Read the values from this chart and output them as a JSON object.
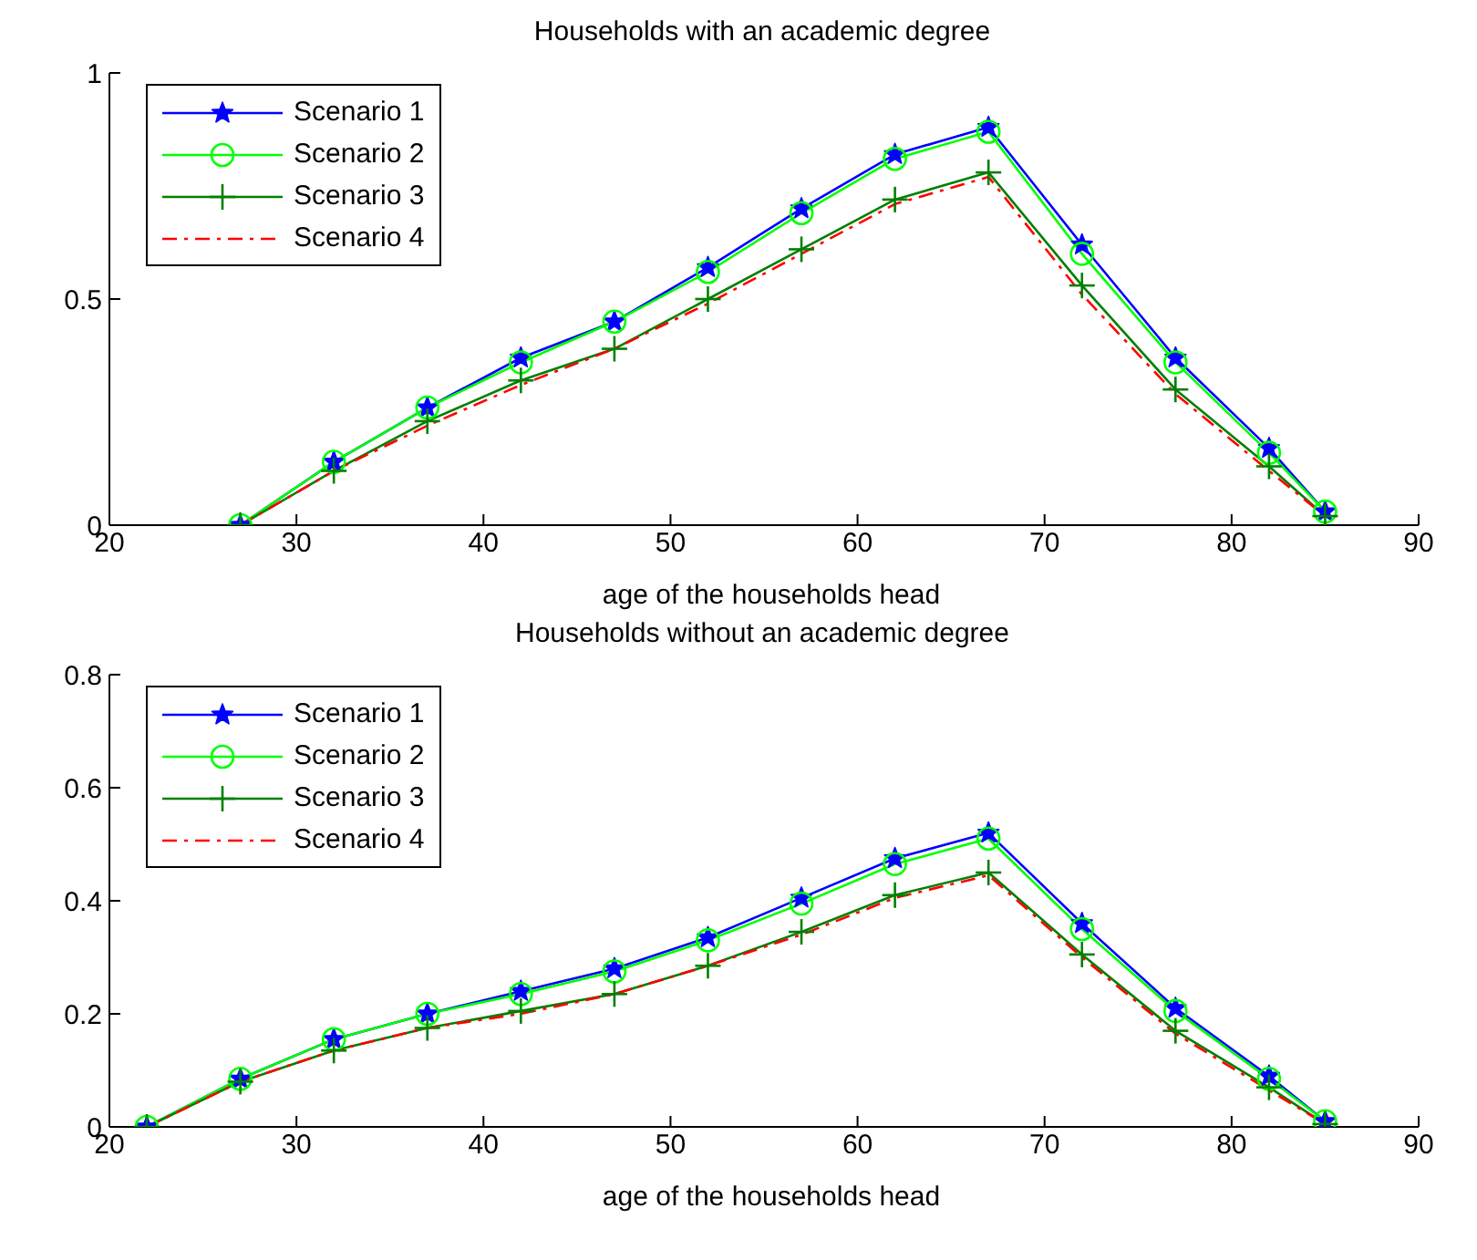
{
  "chart_data": [
    {
      "type": "line",
      "title": "Households with an academic degree",
      "xlabel": "age of the households head",
      "x": [
        27,
        32,
        37,
        42,
        47,
        52,
        57,
        62,
        67,
        72,
        77,
        82,
        85
      ],
      "xlim": [
        20,
        90
      ],
      "xticks": [
        20,
        30,
        40,
        50,
        60,
        70,
        80,
        90
      ],
      "ylim": [
        0,
        1
      ],
      "yticks": [
        0,
        0.5,
        1
      ],
      "legend": "top left",
      "series": [
        {
          "name": "Scenario 1",
          "color": "#0000ff",
          "marker": "star",
          "line_style": "solid",
          "values": [
            0,
            0.14,
            0.26,
            0.37,
            0.45,
            0.57,
            0.7,
            0.82,
            0.88,
            0.62,
            0.37,
            0.17,
            0.03
          ]
        },
        {
          "name": "Scenario 2",
          "color": "#00ff00",
          "marker": "circle",
          "line_style": "solid",
          "values": [
            0,
            0.14,
            0.26,
            0.36,
            0.45,
            0.56,
            0.69,
            0.81,
            0.87,
            0.6,
            0.36,
            0.16,
            0.03
          ]
        },
        {
          "name": "Scenario 3",
          "color": "#008000",
          "marker": "cross",
          "line_style": "solid",
          "values": [
            0,
            0.12,
            0.23,
            0.32,
            0.39,
            0.5,
            0.61,
            0.72,
            0.78,
            0.53,
            0.3,
            0.13,
            0.02
          ]
        },
        {
          "name": "Scenario 4",
          "color": "#ff0000",
          "marker": "none",
          "line_style": "dashed",
          "values": [
            0,
            0.12,
            0.22,
            0.31,
            0.39,
            0.49,
            0.6,
            0.71,
            0.77,
            0.51,
            0.29,
            0.12,
            0.02
          ]
        }
      ]
    },
    {
      "type": "line",
      "title": "Households without an academic degree",
      "xlabel": "age of the households head",
      "x": [
        22,
        27,
        32,
        37,
        42,
        47,
        52,
        57,
        62,
        67,
        72,
        77,
        82,
        85
      ],
      "xlim": [
        20,
        90
      ],
      "xticks": [
        20,
        30,
        40,
        50,
        60,
        70,
        80,
        90
      ],
      "ylim": [
        0,
        0.8
      ],
      "yticks": [
        0,
        0.2,
        0.4,
        0.6,
        0.8
      ],
      "legend": "top left",
      "series": [
        {
          "name": "Scenario 1",
          "color": "#0000ff",
          "marker": "star",
          "line_style": "solid",
          "values": [
            0,
            0.085,
            0.155,
            0.2,
            0.24,
            0.28,
            0.335,
            0.405,
            0.475,
            0.52,
            0.36,
            0.21,
            0.09,
            0.01
          ]
        },
        {
          "name": "Scenario 2",
          "color": "#00ff00",
          "marker": "circle",
          "line_style": "solid",
          "values": [
            0,
            0.085,
            0.155,
            0.2,
            0.235,
            0.275,
            0.33,
            0.395,
            0.465,
            0.51,
            0.35,
            0.205,
            0.085,
            0.01
          ]
        },
        {
          "name": "Scenario 3",
          "color": "#008000",
          "marker": "cross",
          "line_style": "solid",
          "values": [
            0,
            0.08,
            0.135,
            0.175,
            0.205,
            0.235,
            0.285,
            0.345,
            0.41,
            0.45,
            0.305,
            0.17,
            0.07,
            0.005
          ]
        },
        {
          "name": "Scenario 4",
          "color": "#ff0000",
          "marker": "none",
          "line_style": "dashed",
          "values": [
            0,
            0.08,
            0.135,
            0.175,
            0.2,
            0.235,
            0.285,
            0.34,
            0.405,
            0.445,
            0.3,
            0.165,
            0.065,
            0.005
          ]
        }
      ]
    }
  ]
}
